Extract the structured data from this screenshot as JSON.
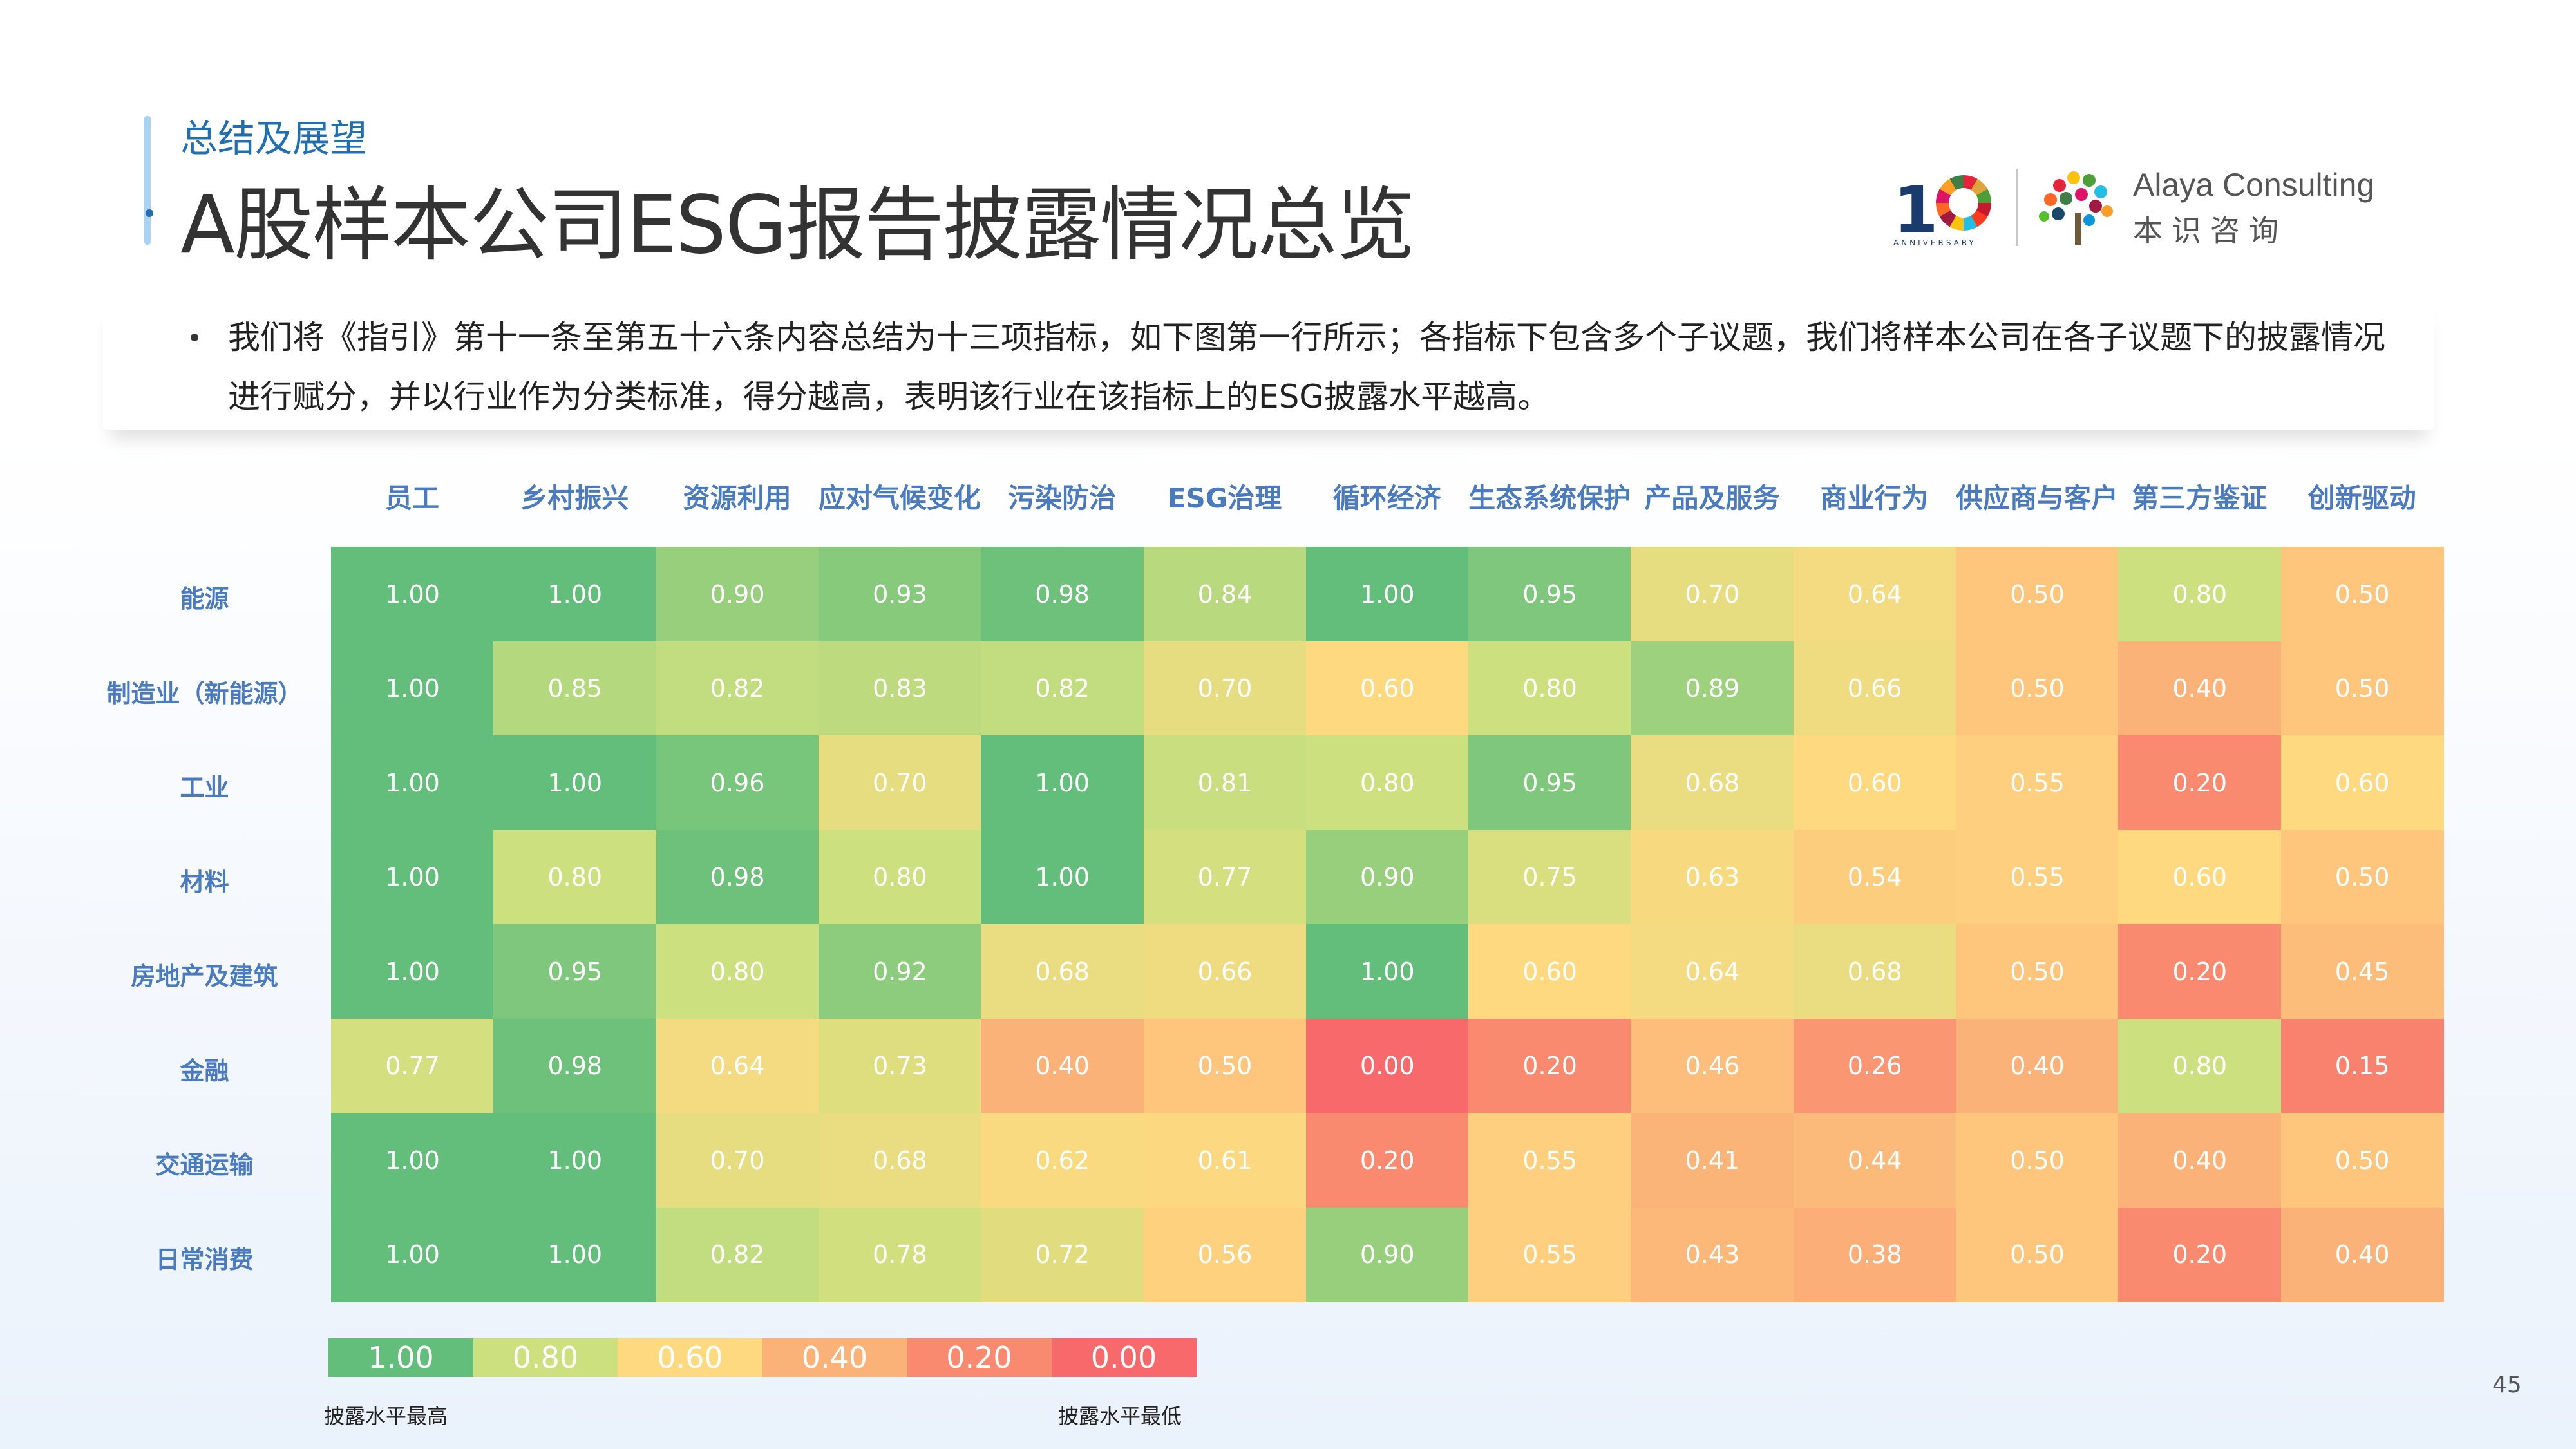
{
  "header": {
    "section_title": "总结及展望",
    "page_title": "A股样本公司ESG报告披露情况总览"
  },
  "logo": {
    "number": "10",
    "anniversary_text": "ANNIVERSARY",
    "company_en": "Alaya Consulting",
    "company_zh": "本识咨询"
  },
  "intro": {
    "text": "我们将《指引》第十一条至第五十六条内容总结为十三项指标，如下图第一行所示；各指标下包含多个子议题，我们将样本公司在各子议题下的披露情况进行赋分，并以行业作为分类标准，得分越高，表明该行业在该指标上的ESG披露水平越高。"
  },
  "chart_data": {
    "type": "heatmap",
    "columns": [
      "员工",
      "乡村振兴",
      "资源利用",
      "应对气候变化",
      "污染防治",
      "ESG治理",
      "循环经济",
      "生态系统保护",
      "产品及服务",
      "商业行为",
      "供应商与客户",
      "第三方鉴证",
      "创新驱动"
    ],
    "rows": [
      "能源",
      "制造业（新能源）",
      "工业",
      "材料",
      "房地产及建筑",
      "金融",
      "交通运输",
      "日常消费"
    ],
    "values": [
      [
        "1.00",
        "1.00",
        "0.90",
        "0.93",
        "0.98",
        "0.84",
        "1.00",
        "0.95",
        "0.70",
        "0.64",
        "0.50",
        "0.80",
        "0.50"
      ],
      [
        "1.00",
        "0.85",
        "0.82",
        "0.83",
        "0.82",
        "0.70",
        "0.60",
        "0.80",
        "0.89",
        "0.66",
        "0.50",
        "0.40",
        "0.50"
      ],
      [
        "1.00",
        "1.00",
        "0.96",
        "0.70",
        "1.00",
        "0.81",
        "0.80",
        "0.95",
        "0.68",
        "0.60",
        "0.55",
        "0.20",
        "0.60"
      ],
      [
        "1.00",
        "0.80",
        "0.98",
        "0.80",
        "1.00",
        "0.77",
        "0.90",
        "0.75",
        "0.63",
        "0.54",
        "0.55",
        "0.60",
        "0.50"
      ],
      [
        "1.00",
        "0.95",
        "0.80",
        "0.92",
        "0.68",
        "0.66",
        "1.00",
        "0.60",
        "0.64",
        "0.68",
        "0.50",
        "0.20",
        "0.45"
      ],
      [
        "0.77",
        "0.98",
        "0.64",
        "0.73",
        "0.40",
        "0.50",
        "0.00",
        "0.20",
        "0.46",
        "0.26",
        "0.40",
        "0.80",
        "0.15"
      ],
      [
        "1.00",
        "1.00",
        "0.70",
        "0.68",
        "0.62",
        "0.61",
        "0.20",
        "0.55",
        "0.41",
        "0.44",
        "0.50",
        "0.40",
        "0.50"
      ],
      [
        "1.00",
        "1.00",
        "0.82",
        "0.78",
        "0.72",
        "0.56",
        "0.90",
        "0.55",
        "0.43",
        "0.38",
        "0.50",
        "0.20",
        "0.40"
      ]
    ],
    "color_scale": {
      "stops": [
        0.0,
        0.2,
        0.4,
        0.6,
        0.8,
        1.0
      ],
      "colors": [
        "#f8696b",
        "#f98a6f",
        "#fbb278",
        "#fed980",
        "#cde07f",
        "#63be7b"
      ]
    },
    "legend": {
      "labels": [
        "1.00",
        "0.80",
        "0.60",
        "0.40",
        "0.20",
        "0.00"
      ],
      "colors": [
        "#63be7b",
        "#cde07f",
        "#fed980",
        "#fbb278",
        "#f98a6f",
        "#f8696b"
      ],
      "high_label": "披露水平最高",
      "low_label": "披露水平最低"
    }
  },
  "footer": {
    "page_number": "45"
  }
}
